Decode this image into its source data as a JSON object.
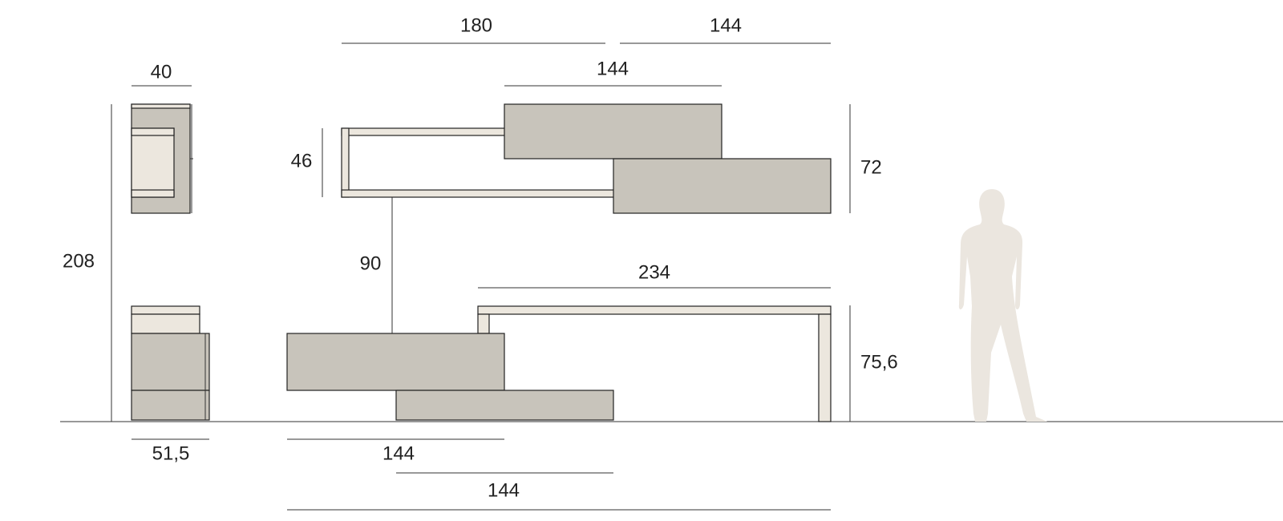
{
  "dimensions": [
    "180",
    "144",
    "40",
    "144",
    "46",
    "72",
    "208",
    "90",
    "234",
    "75,6",
    "51,5",
    "144",
    "144"
  ]
}
